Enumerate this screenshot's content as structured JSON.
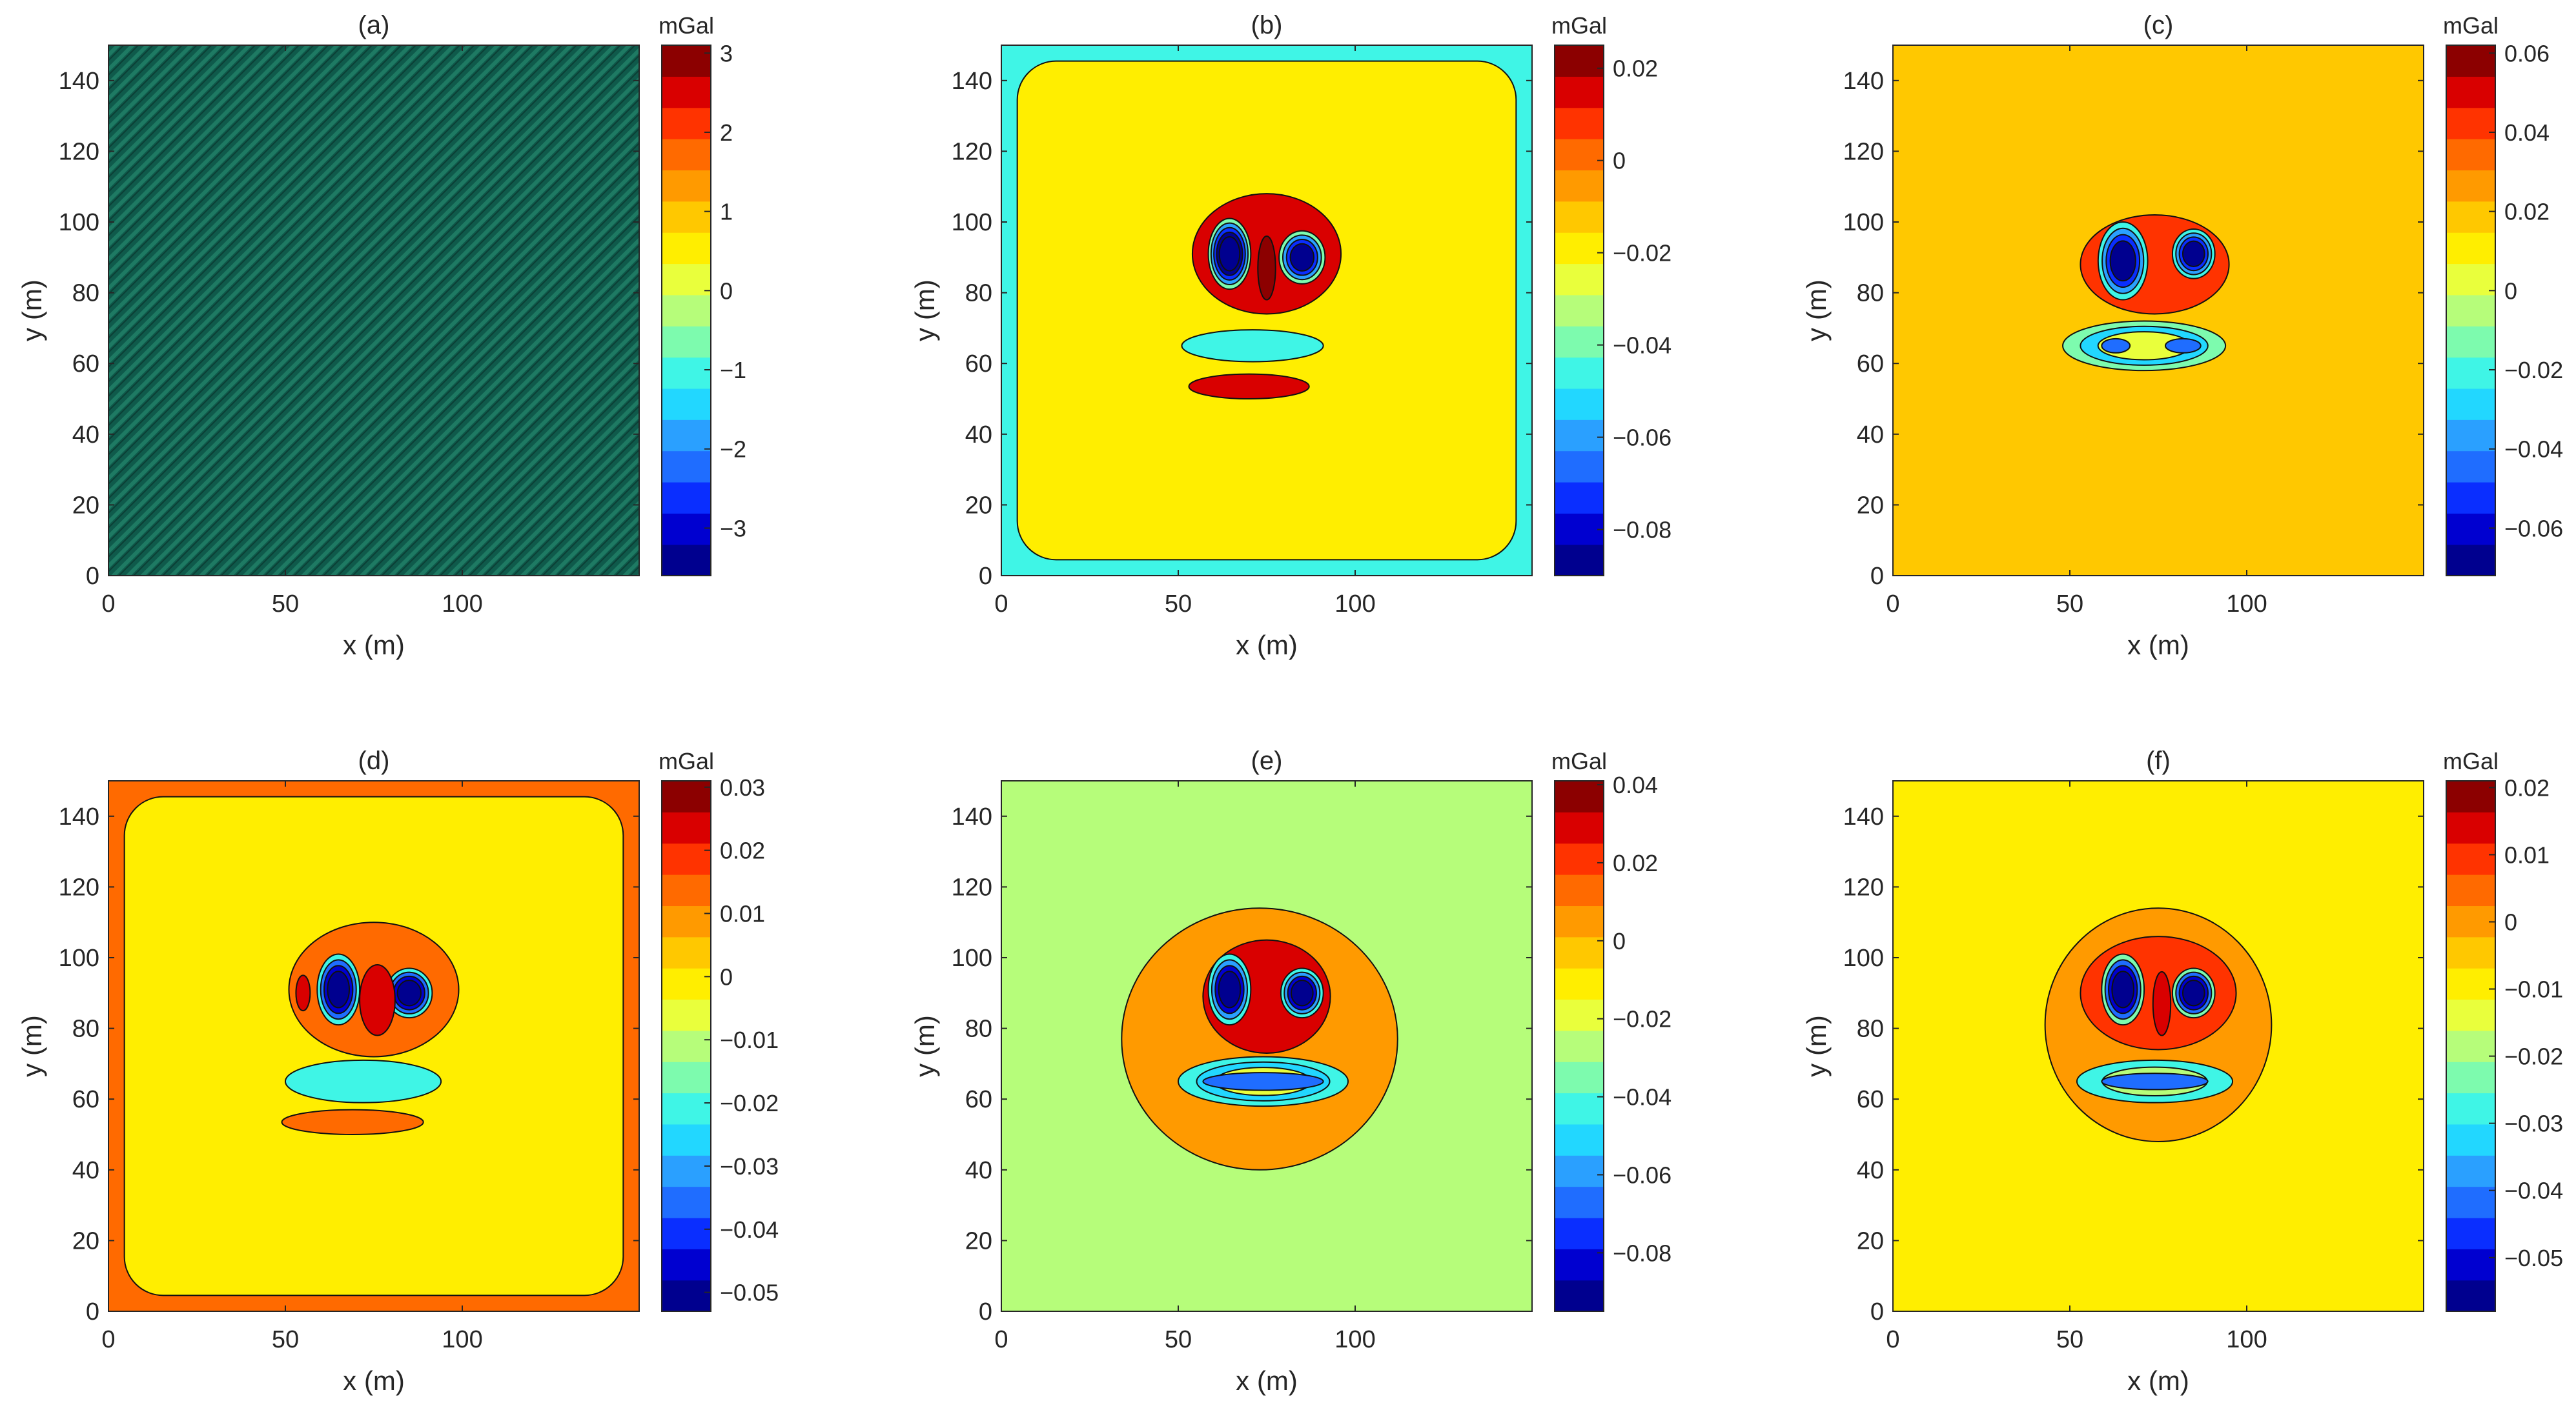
{
  "figure": {
    "x_unit_label": "x (m)",
    "y_unit_label": "y (m)"
  },
  "chart_data": [
    {
      "type": "heatmap",
      "title": "(a)",
      "xlabel": "x (m)",
      "ylabel": "y (m)",
      "xlim": [
        0,
        150
      ],
      "ylim": [
        0,
        150
      ],
      "xticks": [
        0,
        50,
        100
      ],
      "yticks": [
        0,
        20,
        40,
        60,
        80,
        100,
        120,
        140
      ],
      "colorbar": {
        "label": "mGal",
        "range": [
          -3.6,
          3.1
        ],
        "ticks": [
          3,
          2,
          1,
          0,
          -1,
          -2,
          -3
        ],
        "tick_labels": [
          "3",
          "2",
          "1",
          "0",
          "−1",
          "−2",
          "−3"
        ]
      },
      "field": "noise",
      "background_value": -1.35,
      "features": []
    },
    {
      "type": "heatmap",
      "title": "(b)",
      "xlabel": "x (m)",
      "ylabel": "y (m)",
      "xlim": [
        0,
        150
      ],
      "ylim": [
        0,
        150
      ],
      "xticks": [
        0,
        50,
        100
      ],
      "yticks": [
        0,
        20,
        40,
        60,
        80,
        100,
        120,
        140
      ],
      "colorbar": {
        "label": "mGal",
        "range": [
          -0.09,
          0.025
        ],
        "ticks": [
          0.02,
          0,
          -0.02,
          -0.04,
          -0.06,
          -0.08
        ],
        "tick_labels": [
          "0.02",
          "0",
          "−0.02",
          "−0.04",
          "−0.06",
          "−0.08"
        ]
      },
      "field": "contour",
      "background_value": -0.02,
      "frame_value": -0.045,
      "features": [
        {
          "shape": "blob",
          "x": 75,
          "y": 91,
          "rx": 21,
          "ry": 17,
          "value": 0.012
        },
        {
          "shape": "blob",
          "x": 64.5,
          "y": 91,
          "rx": 6,
          "ry": 10,
          "value": -0.09,
          "rings": [
            -0.04,
            -0.06,
            -0.075,
            -0.085
          ]
        },
        {
          "shape": "blob",
          "x": 85,
          "y": 90,
          "rx": 6.5,
          "ry": 7.5,
          "value": -0.09,
          "rings": [
            -0.04,
            -0.06,
            -0.075
          ]
        },
        {
          "shape": "blob",
          "x": 75,
          "y": 87,
          "rx": 2.5,
          "ry": 9,
          "value": 0.02
        },
        {
          "shape": "blob",
          "x": 71,
          "y": 65,
          "rx": 20,
          "ry": 4.5,
          "value": -0.045
        },
        {
          "shape": "blob",
          "x": 70,
          "y": 53.5,
          "rx": 17,
          "ry": 3.5,
          "value": 0.012
        }
      ]
    },
    {
      "type": "heatmap",
      "title": "(c)",
      "xlabel": "x (m)",
      "ylabel": "y (m)",
      "xlim": [
        0,
        150
      ],
      "ylim": [
        0,
        150
      ],
      "xticks": [
        0,
        50,
        100
      ],
      "yticks": [
        0,
        20,
        40,
        60,
        80,
        100,
        120,
        140
      ],
      "colorbar": {
        "label": "mGal",
        "range": [
          -0.072,
          0.062
        ],
        "ticks": [
          0.06,
          0.04,
          0.02,
          0,
          -0.02,
          -0.04,
          -0.06
        ],
        "tick_labels": [
          "0.06",
          "0.04",
          "0.02",
          "0",
          "−0.02",
          "−0.04",
          "−0.06"
        ]
      },
      "field": "contour",
      "background_value": 0.016,
      "features": [
        {
          "shape": "blob",
          "x": 74,
          "y": 88,
          "rx": 21,
          "ry": 14,
          "value": 0.04
        },
        {
          "shape": "blob",
          "x": 65,
          "y": 89,
          "rx": 7,
          "ry": 11,
          "value": -0.066,
          "rings": [
            -0.02,
            -0.04,
            -0.055
          ]
        },
        {
          "shape": "blob",
          "x": 85,
          "y": 91,
          "rx": 6,
          "ry": 7,
          "value": -0.066,
          "rings": [
            -0.02,
            -0.04,
            -0.055
          ]
        },
        {
          "shape": "blob",
          "x": 71,
          "y": 65,
          "rx": 23,
          "ry": 7,
          "value": 0.0,
          "rings": [
            -0.01,
            -0.025
          ]
        },
        {
          "shape": "blob",
          "x": 63,
          "y": 65,
          "rx": 4,
          "ry": 2,
          "value": -0.045
        },
        {
          "shape": "blob",
          "x": 82,
          "y": 65,
          "rx": 5,
          "ry": 2,
          "value": -0.045
        }
      ]
    },
    {
      "type": "heatmap",
      "title": "(d)",
      "xlabel": "x (m)",
      "ylabel": "y (m)",
      "xlim": [
        0,
        150
      ],
      "ylim": [
        0,
        150
      ],
      "xticks": [
        0,
        50,
        100
      ],
      "yticks": [
        0,
        20,
        40,
        60,
        80,
        100,
        120,
        140
      ],
      "colorbar": {
        "label": "mGal",
        "range": [
          -0.053,
          0.031
        ],
        "ticks": [
          0.03,
          0.02,
          0.01,
          0,
          -0.01,
          -0.02,
          -0.03,
          -0.04,
          -0.05
        ],
        "tick_labels": [
          "0.03",
          "0.02",
          "0.01",
          "0",
          "−0.01",
          "−0.02",
          "−0.03",
          "−0.04",
          "−0.05"
        ]
      },
      "field": "contour",
      "background_value": -0.003,
      "frame_value": 0.012,
      "features": [
        {
          "shape": "blob",
          "x": 75,
          "y": 91,
          "rx": 24,
          "ry": 19,
          "value": 0.012
        },
        {
          "shape": "blob",
          "x": 65,
          "y": 91,
          "rx": 6,
          "ry": 10,
          "value": -0.05,
          "rings": [
            -0.02,
            -0.035,
            -0.045
          ]
        },
        {
          "shape": "blob",
          "x": 85,
          "y": 90,
          "rx": 6.5,
          "ry": 7,
          "value": -0.05,
          "rings": [
            -0.02,
            -0.035,
            -0.045
          ]
        },
        {
          "shape": "blob",
          "x": 76,
          "y": 88,
          "rx": 5,
          "ry": 10,
          "value": 0.022
        },
        {
          "shape": "blob",
          "x": 55,
          "y": 90,
          "rx": 2,
          "ry": 5,
          "value": 0.022
        },
        {
          "shape": "blob",
          "x": 72,
          "y": 65,
          "rx": 22,
          "ry": 6,
          "value": -0.022
        },
        {
          "shape": "blob",
          "x": 69,
          "y": 53.5,
          "rx": 20,
          "ry": 3.5,
          "value": 0.012
        }
      ]
    },
    {
      "type": "heatmap",
      "title": "(e)",
      "xlabel": "x (m)",
      "ylabel": "y (m)",
      "xlim": [
        0,
        150
      ],
      "ylim": [
        0,
        150
      ],
      "xticks": [
        0,
        50,
        100
      ],
      "yticks": [
        0,
        20,
        40,
        60,
        80,
        100,
        120,
        140
      ],
      "colorbar": {
        "label": "mGal",
        "range": [
          -0.095,
          0.041
        ],
        "ticks": [
          0.04,
          0.02,
          0,
          -0.02,
          -0.04,
          -0.06,
          -0.08
        ],
        "tick_labels": [
          "0.04",
          "0.02",
          "0",
          "−0.02",
          "−0.04",
          "−0.06",
          "−0.08"
        ]
      },
      "field": "contour",
      "background_value": -0.028,
      "features": [
        {
          "shape": "blob",
          "x": 73,
          "y": 77,
          "rx": 39,
          "ry": 37,
          "value": 0.006
        },
        {
          "shape": "blob",
          "x": 75,
          "y": 89,
          "rx": 18,
          "ry": 16,
          "value": 0.028
        },
        {
          "shape": "blob",
          "x": 64.5,
          "y": 91,
          "rx": 6,
          "ry": 10,
          "value": -0.09,
          "rings": [
            -0.04,
            -0.06,
            -0.08
          ]
        },
        {
          "shape": "blob",
          "x": 85,
          "y": 90,
          "rx": 6,
          "ry": 7,
          "value": -0.09,
          "rings": [
            -0.04,
            -0.06,
            -0.08
          ]
        },
        {
          "shape": "blob",
          "x": 74,
          "y": 65,
          "rx": 24,
          "ry": 7,
          "value": -0.018,
          "rings": [
            -0.04,
            -0.055
          ]
        },
        {
          "shape": "blob",
          "x": 74,
          "y": 65,
          "rx": 17,
          "ry": 2.5,
          "value": -0.065
        }
      ]
    },
    {
      "type": "heatmap",
      "title": "(f)",
      "xlabel": "x (m)",
      "ylabel": "y (m)",
      "xlim": [
        0,
        150
      ],
      "ylim": [
        0,
        150
      ],
      "xticks": [
        0,
        50,
        100
      ],
      "yticks": [
        0,
        20,
        40,
        60,
        80,
        100,
        120,
        140
      ],
      "colorbar": {
        "label": "mGal",
        "range": [
          -0.058,
          0.021
        ],
        "ticks": [
          0.02,
          0.01,
          0,
          -0.01,
          -0.02,
          -0.03,
          -0.04,
          -0.05
        ],
        "tick_labels": [
          "0.02",
          "0.01",
          "0",
          "−0.01",
          "−0.02",
          "−0.03",
          "−0.04",
          "−0.05"
        ]
      },
      "field": "contour",
      "background_value": -0.011,
      "features": [
        {
          "shape": "blob",
          "x": 75,
          "y": 81,
          "rx": 32,
          "ry": 33,
          "value": -0.002
        },
        {
          "shape": "blob",
          "x": 75,
          "y": 90,
          "rx": 22,
          "ry": 16,
          "value": 0.008
        },
        {
          "shape": "blob",
          "x": 65,
          "y": 91,
          "rx": 6,
          "ry": 10,
          "value": -0.055,
          "rings": [
            -0.025,
            -0.04,
            -0.05
          ]
        },
        {
          "shape": "blob",
          "x": 85,
          "y": 90,
          "rx": 6,
          "ry": 7,
          "value": -0.055,
          "rings": [
            -0.025,
            -0.04,
            -0.05
          ]
        },
        {
          "shape": "blob",
          "x": 76,
          "y": 87,
          "rx": 2.5,
          "ry": 9,
          "value": 0.015
        },
        {
          "shape": "blob",
          "x": 74,
          "y": 65,
          "rx": 22,
          "ry": 6,
          "value": -0.02,
          "rings": [
            -0.03
          ]
        },
        {
          "shape": "blob",
          "x": 74,
          "y": 65,
          "rx": 15,
          "ry": 2.3,
          "value": -0.04
        }
      ]
    }
  ]
}
